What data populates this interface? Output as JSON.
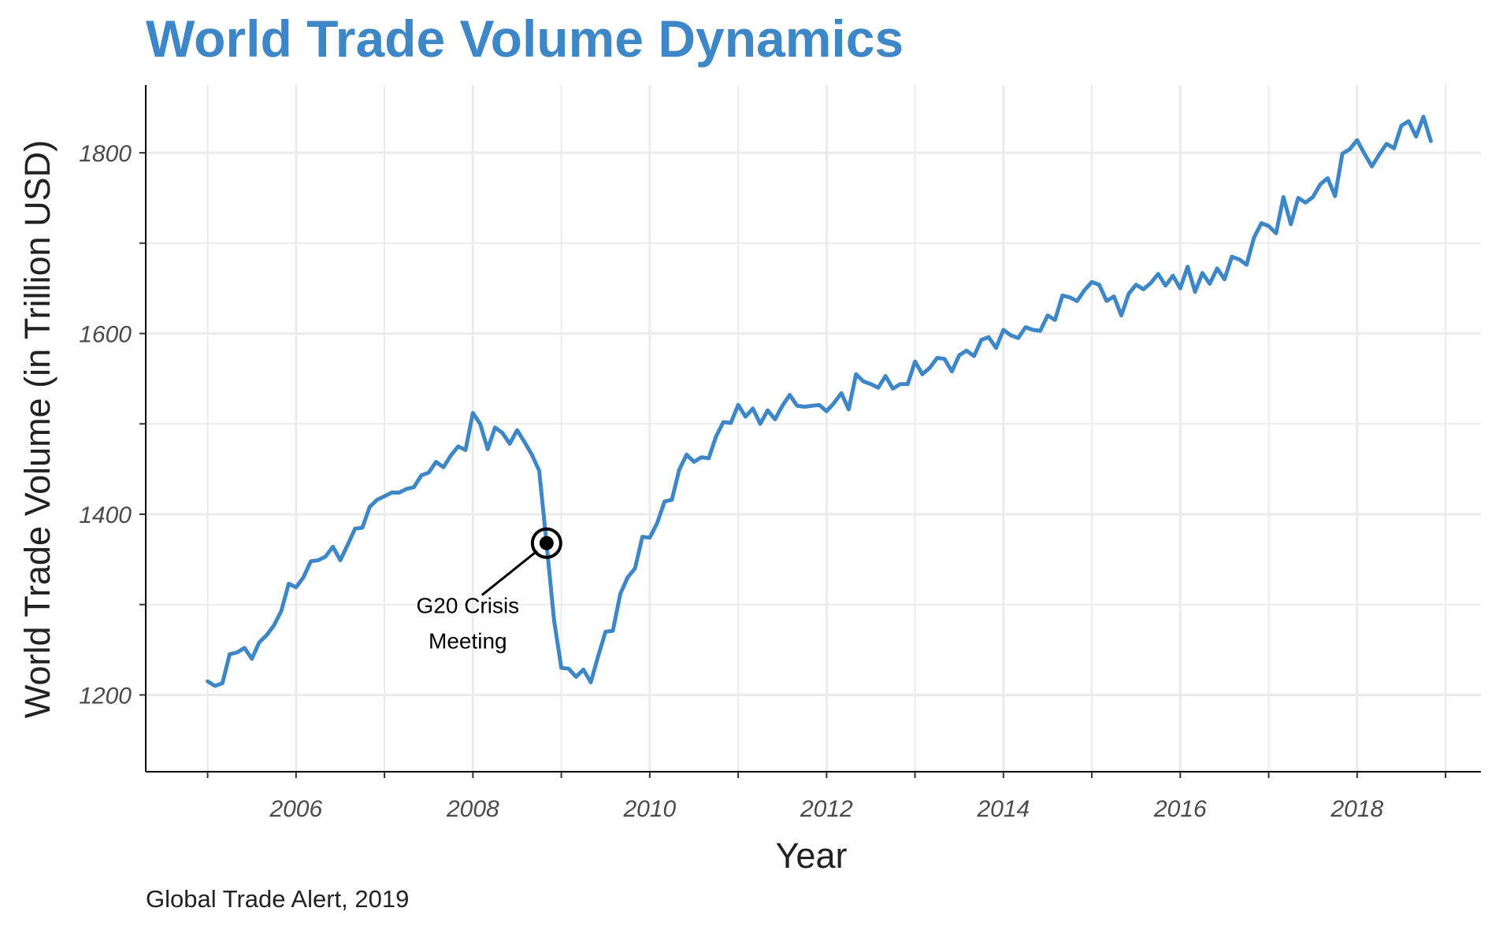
{
  "chart_data": {
    "type": "line",
    "title": "World Trade Volume Dynamics",
    "xlabel": "Year",
    "ylabel": "World Trade Volume (in Trillion USD)",
    "caption": "Global Trade Alert, 2019",
    "xlim": [
      2004.3,
      2019.4
    ],
    "ylim": [
      1115,
      1875
    ],
    "x_ticks": [
      2006,
      2008,
      2010,
      2012,
      2014,
      2016,
      2018
    ],
    "x_tick_labels": [
      "2006",
      "2008",
      "2010",
      "2012",
      "2014",
      "2016",
      "2018"
    ],
    "y_ticks": [
      1200,
      1400,
      1600,
      1800
    ],
    "y_tick_labels": [
      "1200",
      "1400",
      "1600",
      "1800"
    ],
    "grid": true,
    "line_color": "#3d87c8",
    "title_color": "#3d87c8",
    "series": [
      {
        "x": [
          2005.0,
          2005.083,
          2005.167,
          2005.25,
          2005.333,
          2005.417,
          2005.5,
          2005.583,
          2005.667,
          2005.75,
          2005.833,
          2005.917,
          2006.0,
          2006.083,
          2006.167,
          2006.25,
          2006.333,
          2006.417,
          2006.5,
          2006.583,
          2006.667,
          2006.75,
          2006.833,
          2006.917,
          2007.0,
          2007.083,
          2007.167,
          2007.25,
          2007.333,
          2007.417,
          2007.5,
          2007.583,
          2007.667,
          2007.75,
          2007.833,
          2007.917,
          2008.0,
          2008.083,
          2008.167,
          2008.25,
          2008.333,
          2008.417,
          2008.5,
          2008.583,
          2008.667,
          2008.75,
          2008.833,
          2008.917,
          2009.0,
          2009.083,
          2009.167,
          2009.25,
          2009.333,
          2009.417,
          2009.5,
          2009.583,
          2009.667,
          2009.75,
          2009.833,
          2009.917,
          2010.0,
          2010.083,
          2010.167,
          2010.25,
          2010.333,
          2010.417,
          2010.5,
          2010.583,
          2010.667,
          2010.75,
          2010.833,
          2010.917,
          2011.0,
          2011.083,
          2011.167,
          2011.25,
          2011.333,
          2011.417,
          2011.5,
          2011.583,
          2011.667,
          2011.75,
          2011.833,
          2011.917,
          2012.0,
          2012.083,
          2012.167,
          2012.25,
          2012.333,
          2012.417,
          2012.5,
          2012.583,
          2012.667,
          2012.75,
          2012.833,
          2012.917,
          2013.0,
          2013.083,
          2013.167,
          2013.25,
          2013.333,
          2013.417,
          2013.5,
          2013.583,
          2013.667,
          2013.75,
          2013.833,
          2013.917,
          2014.0,
          2014.083,
          2014.167,
          2014.25,
          2014.333,
          2014.417,
          2014.5,
          2014.583,
          2014.667,
          2014.75,
          2014.833,
          2014.917,
          2015.0,
          2015.083,
          2015.167,
          2015.25,
          2015.333,
          2015.417,
          2015.5,
          2015.583,
          2015.667,
          2015.75,
          2015.833,
          2015.917,
          2016.0,
          2016.083,
          2016.167,
          2016.25,
          2016.333,
          2016.417,
          2016.5,
          2016.583,
          2016.667,
          2016.75,
          2016.833,
          2016.917,
          2017.0,
          2017.083,
          2017.167,
          2017.25,
          2017.333,
          2017.417,
          2017.5,
          2017.583,
          2017.667,
          2017.75,
          2017.833,
          2017.917,
          2018.0,
          2018.083,
          2018.167,
          2018.25,
          2018.333,
          2018.417,
          2018.5,
          2018.583,
          2018.667,
          2018.75,
          2018.833
        ],
        "y": [
          1215,
          1210,
          1213,
          1245,
          1247,
          1252,
          1240,
          1258,
          1266,
          1277,
          1293,
          1323,
          1319,
          1330,
          1348,
          1349,
          1353,
          1364,
          1349,
          1366,
          1384,
          1385,
          1408,
          1416,
          1420,
          1424,
          1424,
          1428,
          1430,
          1443,
          1446,
          1458,
          1452,
          1465,
          1475,
          1471,
          1512,
          1500,
          1472,
          1496,
          1490,
          1478,
          1493,
          1480,
          1466,
          1448,
          1368,
          1283,
          1230,
          1229,
          1220,
          1228,
          1214,
          1243,
          1270,
          1271,
          1312,
          1330,
          1340,
          1375,
          1374,
          1390,
          1414,
          1416,
          1449,
          1466,
          1458,
          1463,
          1462,
          1486,
          1502,
          1501,
          1521,
          1508,
          1517,
          1500,
          1515,
          1505,
          1520,
          1532,
          1520,
          1519,
          1520,
          1521,
          1514,
          1523,
          1534,
          1516,
          1555,
          1547,
          1544,
          1540,
          1553,
          1539,
          1544,
          1544,
          1569,
          1555,
          1562,
          1573,
          1572,
          1558,
          1576,
          1581,
          1575,
          1593,
          1596,
          1584,
          1604,
          1598,
          1595,
          1607,
          1604,
          1603,
          1620,
          1615,
          1642,
          1640,
          1636,
          1648,
          1657,
          1654,
          1636,
          1641,
          1620,
          1644,
          1654,
          1649,
          1656,
          1666,
          1653,
          1664,
          1650,
          1674,
          1646,
          1667,
          1655,
          1672,
          1660,
          1685,
          1682,
          1676,
          1706,
          1722,
          1719,
          1711,
          1751,
          1721,
          1750,
          1745,
          1751,
          1765,
          1772,
          1752,
          1799,
          1804,
          1814,
          1799,
          1785,
          1798,
          1810,
          1805,
          1830,
          1835,
          1818,
          1840,
          1813
        ]
      }
    ],
    "annotation": {
      "text_line1": "G20 Crisis",
      "text_line2": "Meeting",
      "x": 2008.833,
      "y": 1368
    }
  }
}
